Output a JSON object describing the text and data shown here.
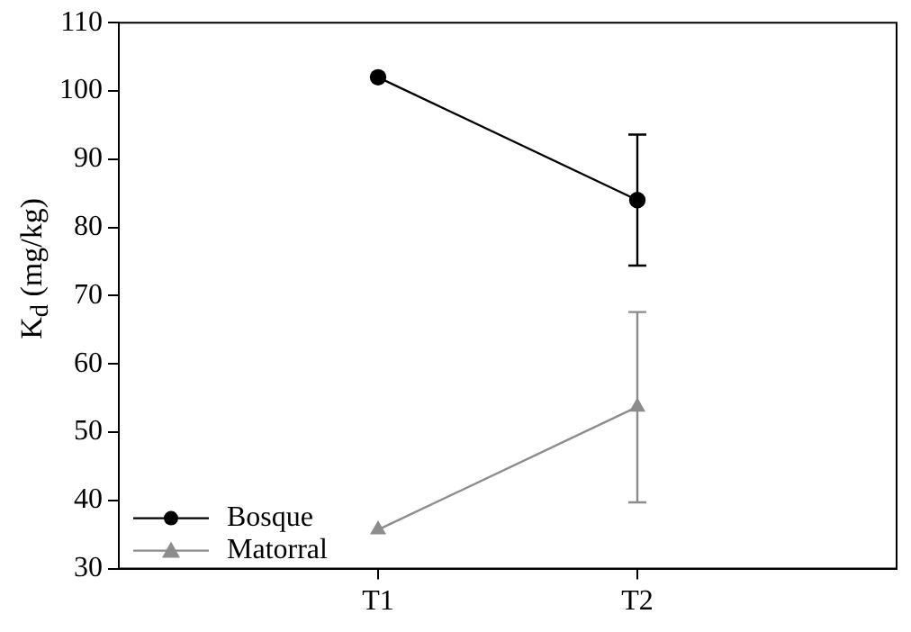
{
  "chart_data": {
    "type": "line",
    "ylabel": "K$_{d}$ (mg/kg)",
    "categories": [
      null,
      "T1",
      "T2",
      null
    ],
    "series": [
      {
        "name": "Bosque",
        "color": "#000000",
        "marker": "circle",
        "values": [
          null,
          102,
          84,
          null
        ],
        "errors": [
          null,
          null,
          [
            74.4,
            93.6
          ],
          null
        ]
      },
      {
        "name": "Matorral",
        "color": "#8c8c8c",
        "marker": "triangle",
        "values": [
          null,
          35.7,
          53.7,
          null
        ],
        "errors": [
          null,
          null,
          [
            39.7,
            67.6
          ],
          null
        ]
      }
    ],
    "ylim": [
      30,
      110
    ],
    "yticks": [
      30,
      40,
      50,
      60,
      70,
      80,
      90,
      100,
      110
    ],
    "grid": false,
    "legend": "bottom left",
    "line_style": "solid"
  }
}
